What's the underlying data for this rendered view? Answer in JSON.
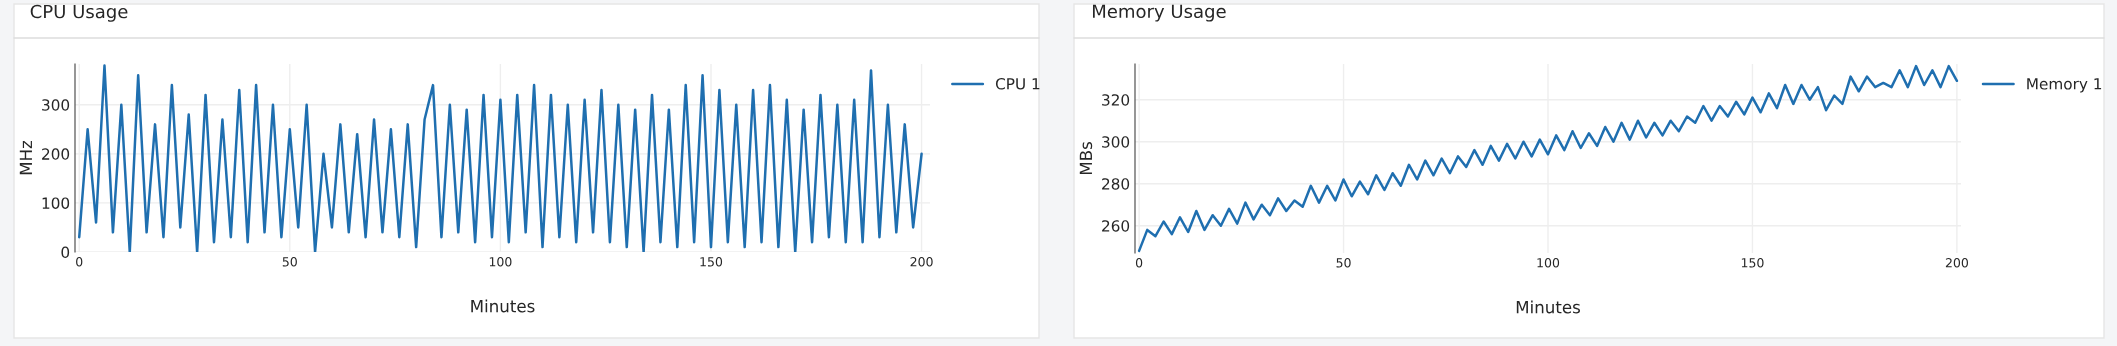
{
  "chart_data": [
    {
      "type": "line",
      "title": "CPU Usage",
      "xlabel": "Minutes",
      "ylabel": "MHz",
      "xlim": [
        -1,
        202
      ],
      "ylim": [
        0,
        383
      ],
      "xticks": [
        0,
        50,
        100,
        150,
        200
      ],
      "yticks": [
        0,
        100,
        200,
        300
      ],
      "grid": true,
      "legend": "top right",
      "x": [
        0,
        2,
        4,
        6,
        8,
        10,
        12,
        14,
        16,
        18,
        20,
        22,
        24,
        26,
        28,
        30,
        32,
        34,
        36,
        38,
        40,
        42,
        44,
        46,
        48,
        50,
        52,
        54,
        56,
        58,
        60,
        62,
        64,
        66,
        68,
        70,
        72,
        74,
        76,
        78,
        80,
        82,
        84,
        86,
        88,
        90,
        92,
        94,
        96,
        98,
        100,
        102,
        104,
        106,
        108,
        110,
        112,
        114,
        116,
        118,
        120,
        122,
        124,
        126,
        128,
        130,
        132,
        134,
        136,
        138,
        140,
        142,
        144,
        146,
        148,
        150,
        152,
        154,
        156,
        158,
        160,
        162,
        164,
        166,
        168,
        170,
        172,
        174,
        176,
        178,
        180,
        182,
        184,
        186,
        188,
        190,
        192,
        194,
        196,
        198,
        200
      ],
      "series": [
        {
          "name": "CPU 1",
          "color": "#1f6fb0",
          "values": [
            30,
            250,
            60,
            380,
            40,
            300,
            0,
            360,
            40,
            260,
            30,
            340,
            50,
            280,
            0,
            320,
            20,
            270,
            30,
            330,
            20,
            340,
            40,
            300,
            30,
            250,
            50,
            300,
            0,
            200,
            50,
            260,
            40,
            240,
            30,
            270,
            40,
            250,
            30,
            260,
            10,
            270,
            340,
            30,
            300,
            40,
            290,
            20,
            320,
            30,
            310,
            20,
            320,
            40,
            340,
            10,
            320,
            30,
            300,
            20,
            310,
            40,
            330,
            20,
            300,
            10,
            290,
            0,
            320,
            20,
            290,
            10,
            340,
            20,
            360,
            10,
            330,
            20,
            300,
            10,
            330,
            20,
            340,
            10,
            310,
            0,
            290,
            20,
            320,
            30,
            300,
            20,
            310,
            20,
            370,
            30,
            300,
            40,
            260,
            50,
            200
          ]
        }
      ]
    },
    {
      "type": "line",
      "title": "Memory Usage",
      "xlabel": "Minutes",
      "ylabel": "MBs",
      "xlim": [
        -1,
        201
      ],
      "ylim": [
        247,
        337
      ],
      "xticks": [
        0,
        50,
        100,
        150,
        200
      ],
      "yticks": [
        260,
        280,
        300,
        320
      ],
      "grid": true,
      "legend": "top right",
      "x": [
        0,
        2,
        4,
        6,
        8,
        10,
        12,
        14,
        16,
        18,
        20,
        22,
        24,
        26,
        28,
        30,
        32,
        34,
        36,
        38,
        40,
        42,
        44,
        46,
        48,
        50,
        52,
        54,
        56,
        58,
        60,
        62,
        64,
        66,
        68,
        70,
        72,
        74,
        76,
        78,
        80,
        82,
        84,
        86,
        88,
        90,
        92,
        94,
        96,
        98,
        100,
        102,
        104,
        106,
        108,
        110,
        112,
        114,
        116,
        118,
        120,
        122,
        124,
        126,
        128,
        130,
        132,
        134,
        136,
        138,
        140,
        142,
        144,
        146,
        148,
        150,
        152,
        154,
        156,
        158,
        160,
        162,
        164,
        166,
        168,
        170,
        172,
        174,
        176,
        178,
        180,
        182,
        184,
        186,
        188,
        190,
        192,
        194,
        196,
        198,
        200
      ],
      "series": [
        {
          "name": "Memory 1",
          "color": "#1f6fb0",
          "values": [
            248,
            258,
            255,
            262,
            256,
            264,
            257,
            267,
            258,
            265,
            260,
            268,
            261,
            271,
            263,
            270,
            265,
            273,
            267,
            272,
            269,
            279,
            271,
            279,
            272,
            282,
            274,
            281,
            275,
            284,
            277,
            285,
            279,
            289,
            282,
            291,
            284,
            292,
            285,
            293,
            288,
            296,
            289,
            298,
            291,
            299,
            292,
            300,
            293,
            301,
            294,
            303,
            296,
            305,
            297,
            304,
            298,
            307,
            300,
            309,
            301,
            310,
            302,
            309,
            303,
            310,
            305,
            312,
            309,
            317,
            310,
            317,
            312,
            319,
            313,
            321,
            314,
            323,
            316,
            327,
            318,
            327,
            320,
            326,
            315,
            322,
            318,
            331,
            324,
            331,
            326,
            328,
            326,
            334,
            326,
            336,
            327,
            334,
            326,
            336,
            329
          ]
        }
      ]
    }
  ]
}
